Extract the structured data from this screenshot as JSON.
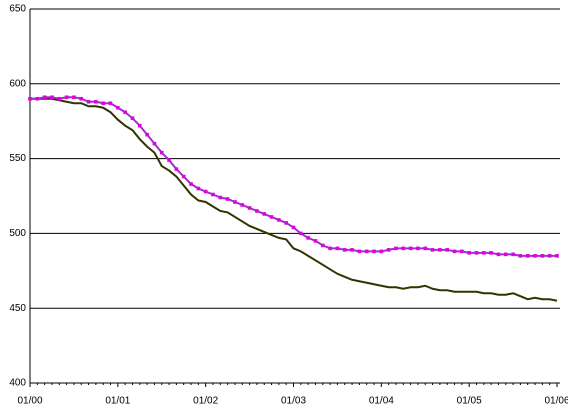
{
  "chart_data": {
    "type": "line",
    "categories": [
      "01/00",
      null,
      null,
      null,
      null,
      null,
      null,
      null,
      null,
      null,
      null,
      null,
      "01/01",
      null,
      null,
      null,
      null,
      null,
      null,
      null,
      null,
      null,
      null,
      null,
      "01/02",
      null,
      null,
      null,
      null,
      null,
      null,
      null,
      null,
      null,
      null,
      null,
      "01/03",
      null,
      null,
      null,
      null,
      null,
      null,
      null,
      null,
      null,
      null,
      null,
      "01/04",
      null,
      null,
      null,
      null,
      null,
      null,
      null,
      null,
      null,
      null,
      null,
      "01/05",
      null,
      null,
      null,
      null,
      null,
      null,
      null,
      null,
      null,
      null,
      null,
      "01/06"
    ],
    "series": [
      {
        "color": "#9933cc",
        "marker_color": "#e000e0",
        "markers": true,
        "values": [
          590,
          590,
          591,
          591,
          590,
          591,
          591,
          590,
          588,
          588,
          587,
          587,
          584,
          581,
          577,
          572,
          566,
          560,
          554,
          549,
          543,
          538,
          533,
          530,
          528,
          526,
          524,
          523,
          521,
          519,
          517,
          515,
          513,
          511,
          509,
          507,
          504,
          500,
          497,
          495,
          492,
          490,
          490,
          489,
          489,
          488,
          488,
          488,
          488,
          489,
          490,
          490,
          490,
          490,
          490,
          489,
          489,
          489,
          488,
          488,
          487,
          487,
          487,
          487,
          486,
          486,
          486,
          485,
          485,
          485,
          485,
          485,
          485
        ]
      },
      {
        "color": "#333300",
        "markers": false,
        "values": [
          590,
          590,
          590,
          590,
          589,
          588,
          587,
          587,
          585,
          585,
          584,
          581,
          576,
          572,
          569,
          563,
          558,
          554,
          545,
          542,
          538,
          532,
          526,
          522,
          521,
          518,
          515,
          514,
          511,
          508,
          505,
          503,
          501,
          499,
          497,
          496,
          490,
          488,
          485,
          482,
          479,
          476,
          473,
          471,
          469,
          468,
          467,
          466,
          465,
          464,
          464,
          463,
          464,
          464,
          465,
          463,
          462,
          462,
          461,
          461,
          461,
          461,
          460,
          460,
          459,
          459,
          460,
          458,
          456,
          457,
          456,
          456,
          455
        ]
      }
    ],
    "ylim": [
      400,
      650
    ],
    "yticks": [
      400,
      450,
      500,
      550,
      600,
      650
    ],
    "grid": true
  }
}
